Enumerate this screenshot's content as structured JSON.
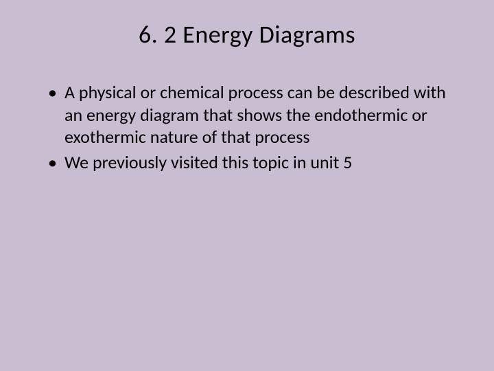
{
  "background_color": "#c9bdd1",
  "text_color": "#000000",
  "title": {
    "text": "6. 2 Energy Diagrams",
    "fontsize": 36,
    "align": "center"
  },
  "bullets": [
    "A physical or chemical process can be described with an energy diagram that shows the endothermic or exothermic nature of that process",
    "We previously visited this topic in unit 5"
  ],
  "bullet_fontsize": 26
}
